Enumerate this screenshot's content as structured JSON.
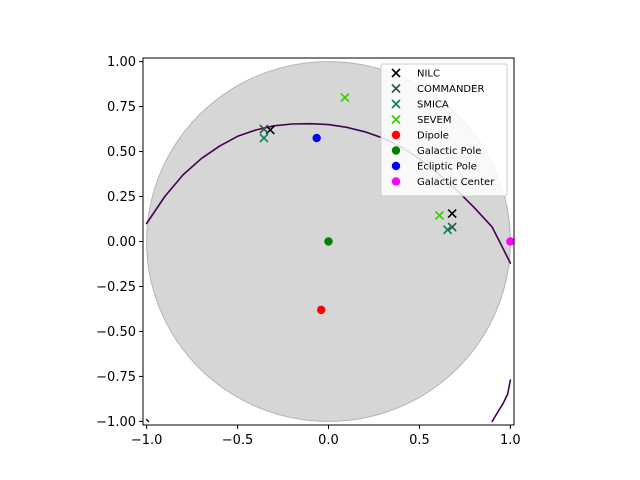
{
  "chart_data": {
    "type": "scatter",
    "title": "",
    "xlabel": "",
    "ylabel": "",
    "xlim": [
      -1.02,
      1.02
    ],
    "ylim": [
      -1.02,
      1.02
    ],
    "x_ticks": [
      -1.0,
      -0.5,
      0.0,
      0.5,
      1.0
    ],
    "x_tick_labels": [
      "−1.0",
      "−0.5",
      "0.0",
      "0.5",
      "1.0"
    ],
    "y_ticks": [
      -1.0,
      -0.75,
      -0.5,
      -0.25,
      0.0,
      0.25,
      0.5,
      0.75,
      1.0
    ],
    "y_tick_labels": [
      "−1.00",
      "−0.75",
      "−0.50",
      "−0.25",
      "0.00",
      "0.25",
      "0.50",
      "0.75",
      "1.00"
    ],
    "grid": false,
    "legend_position": "upper-right",
    "disk": {
      "center": [
        0,
        0
      ],
      "radius": 1.0,
      "color": "#d6d6d6"
    },
    "curves": [
      {
        "color": "#440154",
        "points": [
          [
            -1.0,
            0.1
          ],
          [
            -0.9,
            0.25
          ],
          [
            -0.8,
            0.37
          ],
          [
            -0.7,
            0.46
          ],
          [
            -0.6,
            0.53
          ],
          [
            -0.5,
            0.585
          ],
          [
            -0.4,
            0.62
          ],
          [
            -0.3,
            0.643
          ],
          [
            -0.2,
            0.653
          ],
          [
            -0.1,
            0.655
          ],
          [
            0.0,
            0.65
          ],
          [
            0.1,
            0.635
          ],
          [
            0.2,
            0.61
          ],
          [
            0.3,
            0.575
          ],
          [
            0.4,
            0.525
          ],
          [
            0.5,
            0.46
          ],
          [
            0.6,
            0.38
          ],
          [
            0.7,
            0.29
          ],
          [
            0.8,
            0.19
          ],
          [
            0.9,
            0.08
          ],
          [
            1.0,
            -0.12
          ]
        ]
      },
      {
        "color": "#440154",
        "points": [
          [
            0.9,
            -1.0
          ],
          [
            0.93,
            -0.95
          ],
          [
            0.96,
            -0.9
          ],
          [
            0.985,
            -0.85
          ],
          [
            1.0,
            -0.77
          ]
        ]
      },
      {
        "color": "#440154",
        "points": [
          [
            -1.0,
            -0.99
          ],
          [
            -0.99,
            -1.0
          ]
        ]
      }
    ],
    "series": [
      {
        "name": "NILC",
        "marker": "x",
        "color": "#000000",
        "points": [
          [
            -0.32,
            0.62
          ],
          [
            0.68,
            0.155
          ]
        ]
      },
      {
        "name": "COMMANDER",
        "marker": "x",
        "color": "#2f4f4f",
        "points": [
          [
            -0.355,
            0.625
          ],
          [
            0.68,
            0.08
          ]
        ]
      },
      {
        "name": "SMICA",
        "marker": "x",
        "color": "#008060",
        "points": [
          [
            -0.355,
            0.575
          ],
          [
            0.655,
            0.065
          ]
        ]
      },
      {
        "name": "SEVEM",
        "marker": "x",
        "color": "#33cc00",
        "points": [
          [
            0.09,
            0.8
          ],
          [
            0.61,
            0.145
          ]
        ]
      },
      {
        "name": "Dipole",
        "marker": "o",
        "color": "#ff0000",
        "points": [
          [
            -0.04,
            -0.38
          ]
        ]
      },
      {
        "name": "Galactic Pole",
        "marker": "o",
        "color": "#008000",
        "points": [
          [
            0.0,
            0.0
          ]
        ]
      },
      {
        "name": "Ecliptic Pole",
        "marker": "o",
        "color": "#0000ff",
        "points": [
          [
            -0.065,
            0.575
          ]
        ]
      },
      {
        "name": "Galactic Center",
        "marker": "o",
        "color": "#ff00ff",
        "points": [
          [
            1.0,
            0.0
          ]
        ]
      }
    ]
  }
}
